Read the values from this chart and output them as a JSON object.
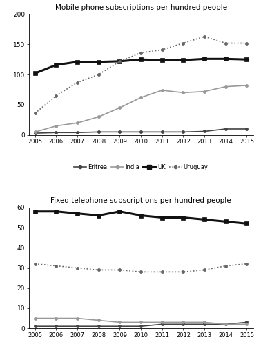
{
  "years": [
    2005,
    2006,
    2007,
    2008,
    2009,
    2010,
    2011,
    2012,
    2013,
    2014,
    2015
  ],
  "mobile": {
    "Eritrea": [
      3,
      4,
      4,
      5,
      5,
      5,
      5,
      5,
      6,
      10,
      10
    ],
    "India": [
      5,
      15,
      20,
      30,
      45,
      62,
      74,
      70,
      72,
      80,
      82
    ],
    "UK": [
      102,
      116,
      121,
      121,
      122,
      125,
      124,
      124,
      126,
      126,
      125
    ],
    "Uruguay": [
      36,
      65,
      87,
      100,
      122,
      136,
      141,
      152,
      163,
      152,
      152
    ]
  },
  "fixed": {
    "Eritrea": [
      1,
      1,
      1,
      1,
      1,
      1,
      2,
      2,
      2,
      2,
      3
    ],
    "India": [
      5,
      5,
      5,
      4,
      3,
      3,
      3,
      3,
      3,
      2,
      2
    ],
    "UK": [
      58,
      58,
      57,
      56,
      58,
      56,
      55,
      55,
      54,
      53,
      52
    ],
    "Uruguay": [
      32,
      31,
      30,
      29,
      29,
      28,
      28,
      28,
      29,
      31,
      32
    ]
  },
  "mobile_ylim": [
    0,
    200
  ],
  "mobile_yticks": [
    0,
    50,
    100,
    150,
    200
  ],
  "fixed_ylim": [
    0,
    60
  ],
  "fixed_yticks": [
    0,
    10,
    20,
    30,
    40,
    50,
    60
  ],
  "title_mobile": "Mobile phone subscriptions per hundred people",
  "title_fixed": "Fixed telephone subscriptions per hundred people",
  "bg_color": "#ffffff",
  "line_styles": {
    "Eritrea": {
      "color": "#444444",
      "linestyle": "-",
      "marker": "o",
      "linewidth": 1.2,
      "markersize": 3,
      "markerfacecolor": "#444444"
    },
    "India": {
      "color": "#999999",
      "linestyle": "-",
      "marker": "o",
      "linewidth": 1.2,
      "markersize": 3,
      "markerfacecolor": "#999999"
    },
    "UK": {
      "color": "#111111",
      "linestyle": "-",
      "marker": "s",
      "linewidth": 2.2,
      "markersize": 4,
      "markerfacecolor": "#111111"
    },
    "Uruguay": {
      "color": "#666666",
      "linestyle": ":",
      "marker": "o",
      "linewidth": 1.2,
      "markersize": 3,
      "markerfacecolor": "#666666"
    }
  }
}
